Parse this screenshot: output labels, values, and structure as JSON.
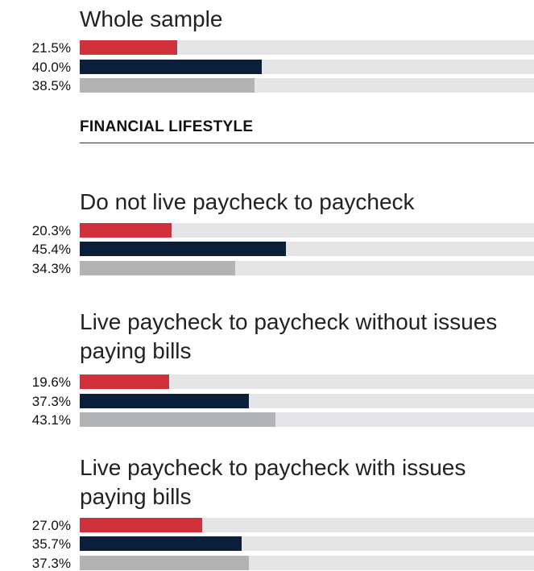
{
  "section_header": "FINANCIAL LIFESTYLE",
  "colors": {
    "series1": "#d1313a",
    "series2": "#0c1f3a",
    "series3": "#b1b3b5",
    "track": "#e5e5e7"
  },
  "chart_data": {
    "type": "bar",
    "orientation": "horizontal",
    "xlim": [
      0,
      100
    ],
    "unit": "%",
    "groups": [
      {
        "title": "Whole sample",
        "values": [
          21.5,
          40.0,
          38.5
        ],
        "labels": [
          "21.5%",
          "40.0%",
          "38.5%"
        ]
      },
      {
        "title": "Do not live paycheck to paycheck",
        "values": [
          20.3,
          45.4,
          34.3
        ],
        "labels": [
          "20.3%",
          "45.4%",
          "34.3%"
        ]
      },
      {
        "title": "Live paycheck to paycheck without issues paying bills",
        "values": [
          19.6,
          37.3,
          43.1
        ],
        "labels": [
          "19.6%",
          "37.3%",
          "43.1%"
        ]
      },
      {
        "title": "Live paycheck to paycheck with issues paying bills",
        "values": [
          27.0,
          35.7,
          37.3
        ],
        "labels": [
          "27.0%",
          "35.7%",
          "37.3%"
        ]
      }
    ]
  }
}
